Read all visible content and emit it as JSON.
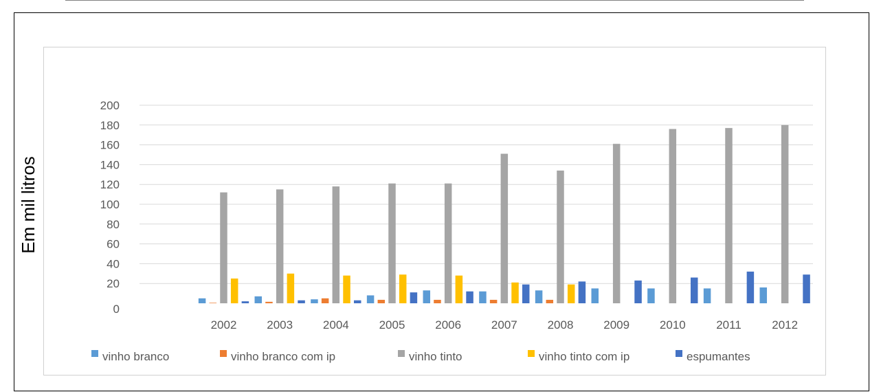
{
  "chart_data": {
    "type": "bar",
    "title": "",
    "xlabel": "",
    "ylabel": "Em mil litros",
    "ylim": [
      0,
      200
    ],
    "yticks": [
      "0",
      "20",
      "40",
      "60",
      "80",
      "100",
      "120",
      "140",
      "160",
      "180",
      "200"
    ],
    "grid": true,
    "legend": "bottom",
    "categories": [
      "",
      "2002",
      "2003",
      "2004",
      "2005",
      "2006",
      "2007",
      "2008",
      "2009",
      "2010",
      "2011",
      "2012"
    ],
    "series": [
      {
        "name": "vinho branco",
        "color": "#5B9BD5",
        "values": [
          0,
          5,
          7,
          4,
          8,
          13,
          12,
          13,
          15,
          15,
          15,
          16
        ]
      },
      {
        "name": "vinho branco com ip",
        "color": "#ED7D31",
        "values": [
          0,
          0.5,
          1.5,
          5,
          3.5,
          3.5,
          3.5,
          3.5,
          0,
          0,
          0,
          0
        ]
      },
      {
        "name": "vinho tinto",
        "color": "#A5A5A5",
        "values": [
          0,
          112,
          115,
          118,
          121,
          121,
          151,
          134,
          161,
          176,
          177,
          180
        ]
      },
      {
        "name": "vinho tinto com ip",
        "color": "#FFC000",
        "values": [
          0,
          25,
          30,
          28,
          29,
          28,
          21,
          19,
          0,
          0,
          0,
          0
        ]
      },
      {
        "name": "espumantes",
        "color": "#4472C4",
        "values": [
          0,
          2,
          3,
          3,
          11,
          12,
          19,
          22,
          23,
          26,
          32,
          29
        ]
      }
    ]
  }
}
